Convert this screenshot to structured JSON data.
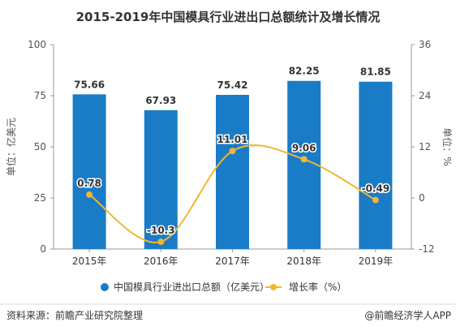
{
  "chart_data": {
    "type": "bar",
    "title": "2015-2019年中国模具行业进出口总额统计及增长情况",
    "categories": [
      "2015年",
      "2016年",
      "2017年",
      "2018年",
      "2019年"
    ],
    "series": [
      {
        "name": "中国模具行业进出口总额（亿美元）",
        "type": "bar",
        "axis": "left",
        "values": [
          75.66,
          67.93,
          75.42,
          82.25,
          81.85
        ],
        "labels": [
          "75.66",
          "67.93",
          "75.42",
          "82.25",
          "81.85"
        ]
      },
      {
        "name": "增长率（%）",
        "type": "line",
        "axis": "right",
        "values": [
          0.78,
          -10.3,
          11.01,
          9.06,
          -0.49
        ],
        "labels": [
          "0.78",
          "-10.3",
          "11.01",
          "9.06",
          "-0.49"
        ]
      }
    ],
    "ylabel_left": "单位：亿美元",
    "ylabel_right": "单位：%",
    "ylim_left": [
      0,
      100
    ],
    "yticks_left": [
      "0",
      "25",
      "50",
      "75",
      "100"
    ],
    "ylim_right": [
      -12,
      36
    ],
    "yticks_right": [
      "-12",
      "0",
      "12",
      "24",
      "36"
    ],
    "grid": false,
    "legend_position": "bottom",
    "colors": {
      "bar": "#1a7cc6",
      "line": "#f0b731"
    }
  },
  "footer": {
    "source": "资料来源：前瞻产业研究院整理",
    "brand": "@前瞻经济学人APP"
  }
}
